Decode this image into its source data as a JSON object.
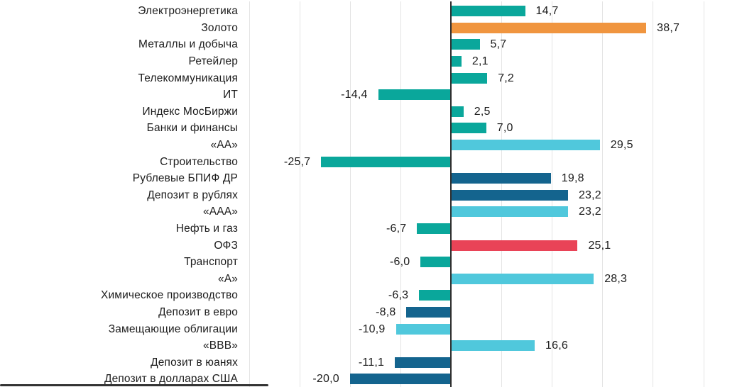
{
  "palette": {
    "teal": "#0AA79B",
    "orange": "#F0953F",
    "cyan": "#50C8DC",
    "darkblue": "#14648E",
    "red": "#E94357",
    "axis": "#2E2E2E",
    "gridline": "#E4E4E4",
    "text": "#1C1C1C"
  },
  "chart_data": {
    "type": "bar",
    "orientation": "horizontal",
    "title": "",
    "xlabel": "",
    "ylabel": "",
    "xlim": [
      -42,
      58
    ],
    "gridline_step": 10,
    "gridline_values": [
      -40,
      -30,
      -20,
      -10,
      10,
      20,
      30,
      40,
      50
    ],
    "grid": true,
    "legend_position": "none",
    "value_label_format": "decimal-comma",
    "categories": [
      "Электроэнергетика",
      "Золото",
      "Металлы и добыча",
      "Ретейлер",
      "Телекоммуникация",
      "ИТ",
      "Индекс МосБиржи",
      "Банки и финансы",
      "«АА»",
      "Строительство",
      "Рублевые БПИФ ДР",
      "Депозит в рублях",
      "«ААА»",
      "Нефть и газ",
      "ОФЗ",
      "Транспорт",
      "«А»",
      "Химическое производство",
      "Депозит в евро",
      "Замещающие облигации",
      "«ВВВ»",
      "Депозит в юанях",
      "Депозит в долларах США"
    ],
    "values": [
      14.7,
      38.7,
      5.7,
      2.1,
      7.2,
      -14.4,
      2.5,
      7.0,
      29.5,
      -25.7,
      19.8,
      23.2,
      23.2,
      -6.7,
      25.1,
      -6.0,
      28.3,
      -6.3,
      -8.8,
      -10.9,
      16.6,
      -11.1,
      -20.0
    ],
    "value_labels": [
      "14,7",
      "38,7",
      "5,7",
      "2,1",
      "7,2",
      "-14,4",
      "2,5",
      "7,0",
      "29,5",
      "-25,7",
      "19,8",
      "23,2",
      "23,2",
      "-6,7",
      "25,1",
      "-6,0",
      "28,3",
      "-6,3",
      "-8,8",
      "-10,9",
      "16,6",
      "-11,1",
      "-20,0"
    ],
    "bar_colors": [
      "teal",
      "orange",
      "teal",
      "teal",
      "teal",
      "teal",
      "teal",
      "teal",
      "cyan",
      "teal",
      "darkblue",
      "darkblue",
      "cyan",
      "teal",
      "red",
      "teal",
      "cyan",
      "teal",
      "darkblue",
      "cyan",
      "cyan",
      "darkblue",
      "darkblue"
    ]
  }
}
